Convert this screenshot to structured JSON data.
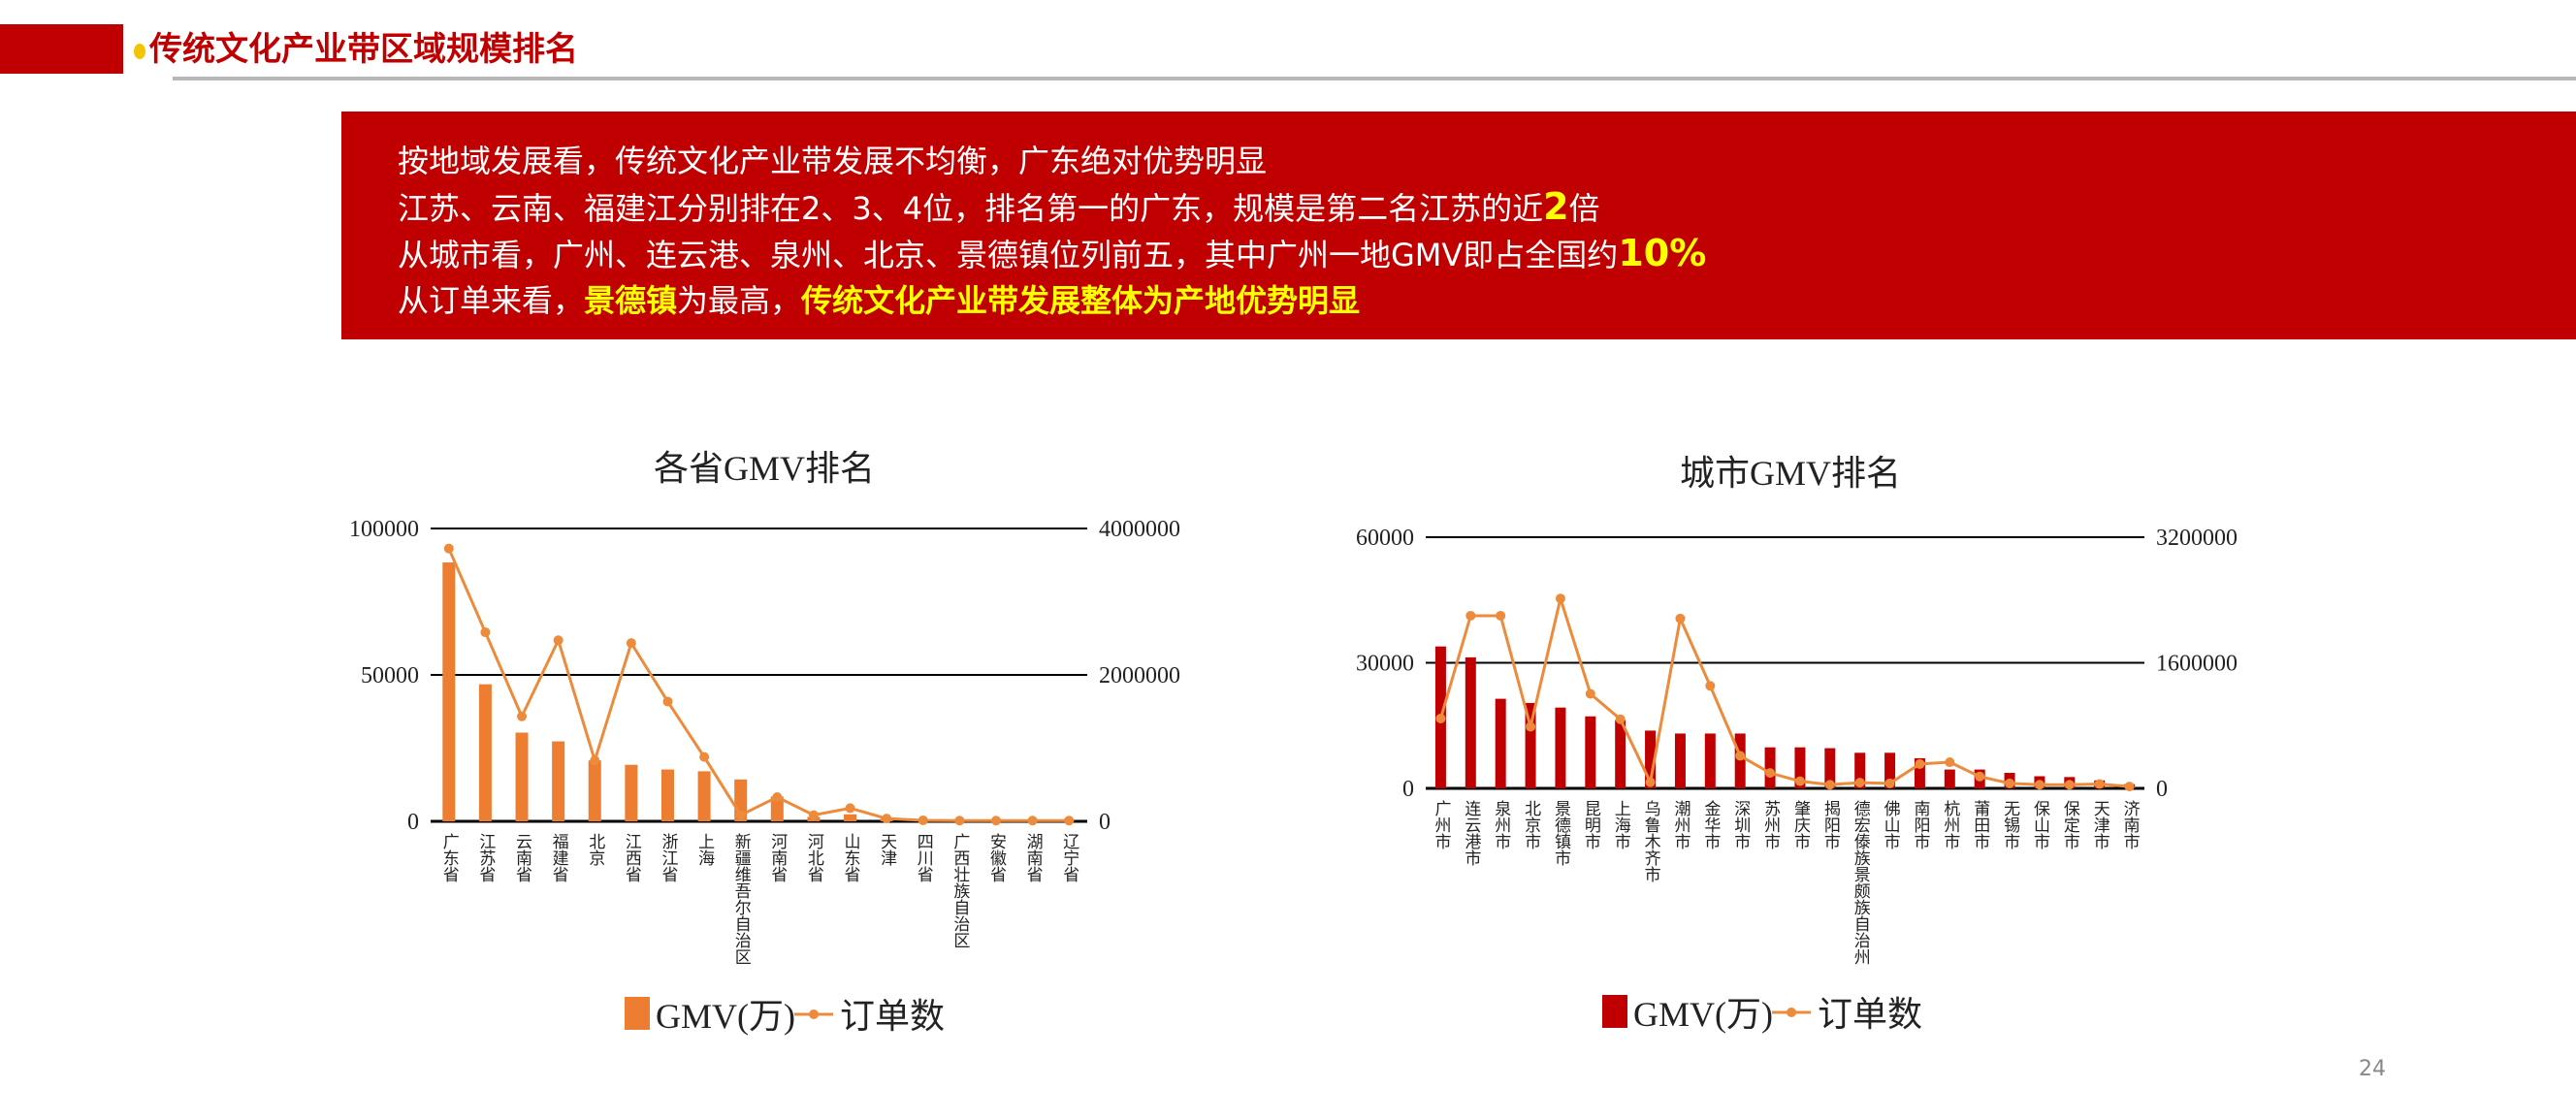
{
  "header": {
    "title": "传统文化产业带区域规模排名"
  },
  "summary": {
    "line1": "按地域发展看，传统文化产业带发展不均衡，广东绝对优势明显",
    "line2_a": "江苏、云南、福建江分别排在2、3、4位，排名第一的广东，规模是第二名江苏的近",
    "line2_b": "2",
    "line2_c": "倍",
    "line3_a": "从城市看，广州、连云港、泉州、北京、景德镇位列前五，其中广州一地GMV即占全国约",
    "line3_b": "10%",
    "line4_a": "从订单来看，",
    "line4_b": "景德镇",
    "line4_c": "为最高，",
    "line4_d": "传统文化产业带发展整体为产地优势明显"
  },
  "page_number": "24",
  "colors": {
    "brand_red": "#c00000",
    "highlight": "#ffff00",
    "province_bar": "#ed7d31",
    "city_bar": "#c00000",
    "order_line": "#ed8b3c"
  },
  "chart_data": [
    {
      "type": "bar+line",
      "title": "各省GMV排名",
      "categories": [
        "广东省",
        "江苏省",
        "云南省",
        "福建省",
        "北京",
        "江西省",
        "浙江省",
        "上海",
        "新疆维吾尔自治区",
        "河南省",
        "河北省",
        "山东省",
        "天津",
        "四川省",
        "广西壮族自治区",
        "安徽省",
        "湖南省",
        "辽宁省"
      ],
      "series": [
        {
          "name": "GMV(万)",
          "type": "bar",
          "axis": "left",
          "values": [
            88400,
            46800,
            30300,
            27300,
            20800,
            19300,
            17700,
            17100,
            14300,
            8500,
            1500,
            2400,
            900,
            500,
            300,
            200,
            100,
            100
          ]
        },
        {
          "name": "订单数",
          "type": "line",
          "axis": "right",
          "values": [
            3726000,
            2582000,
            1433000,
            2473000,
            832000,
            2435000,
            1636000,
            879000,
            85000,
            331000,
            85000,
            180000,
            38000,
            14000,
            10000,
            10000,
            10000,
            10000
          ]
        }
      ],
      "y_left": {
        "range": [
          0,
          100000
        ],
        "ticks": [
          "0",
          "50000",
          "100000"
        ]
      },
      "y_right": {
        "range": [
          0,
          4000000
        ],
        "ticks": [
          "0",
          "2000000",
          "4000000"
        ]
      },
      "grid": true,
      "legend": "bottom"
    },
    {
      "type": "bar+line",
      "title": "城市GMV排名",
      "categories": [
        "广州市",
        "连云港市",
        "泉州市",
        "北京市",
        "景德镇市",
        "昆明市",
        "上海市",
        "乌鲁木齐市",
        "潮州市",
        "金华市",
        "深圳市",
        "苏州市",
        "肇庆市",
        "揭阳市",
        "德宏傣族景颇族自治州",
        "佛山市",
        "南阳市",
        "杭州市",
        "莆田市",
        "无锡市",
        "保山市",
        "保定市",
        "天津市",
        "济南市"
      ],
      "series": [
        {
          "name": "GMV(万)",
          "type": "bar",
          "axis": "left",
          "values": [
            33900,
            31300,
            21400,
            20400,
            19300,
            17200,
            16300,
            13800,
            13100,
            13100,
            13100,
            9800,
            9800,
            9600,
            8500,
            8500,
            7200,
            4500,
            4500,
            3700,
            2900,
            2700,
            1900,
            1000
          ]
        },
        {
          "name": "订单数",
          "type": "line",
          "axis": "right",
          "values": [
            890000,
            2200000,
            2200000,
            785000,
            2419000,
            1205000,
            881000,
            78000,
            2164000,
            1306000,
            415000,
            196000,
            91000,
            46000,
            73000,
            64000,
            310000,
            333000,
            151000,
            64000,
            46000,
            46000,
            55000,
            23000
          ]
        }
      ],
      "y_left": {
        "range": [
          0,
          60000
        ],
        "ticks": [
          "0",
          "30000",
          "60000"
        ]
      },
      "y_right": {
        "range": [
          0,
          3200000
        ],
        "ticks": [
          "0",
          "1600000",
          "3200000"
        ]
      },
      "grid": true,
      "legend": "bottom"
    }
  ]
}
